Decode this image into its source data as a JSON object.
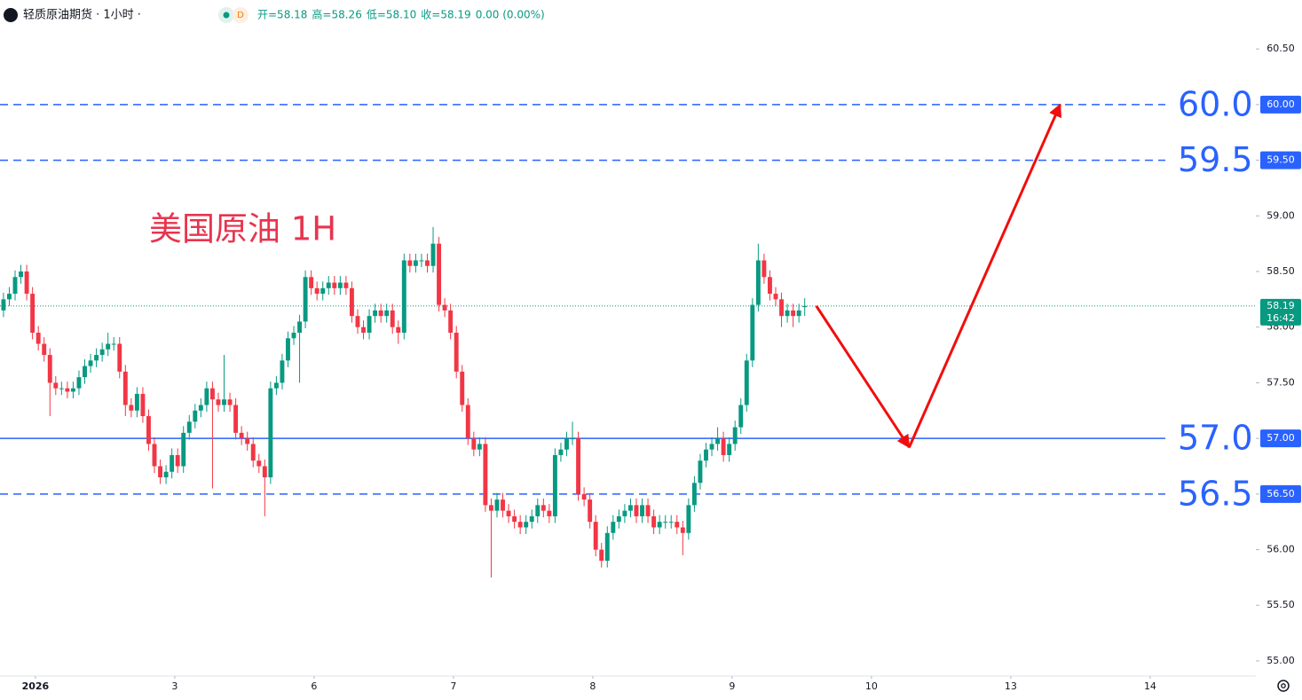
{
  "chart_data": {
    "type": "candlestick",
    "header": {
      "symbol": "轻质原油期货 · 1小时 ·",
      "badge": "D",
      "ohlc": [
        "开=58.18",
        "高=58.26",
        "低=58.10",
        "收=58.19",
        "0.00 (0.00%)"
      ]
    },
    "annotation": "美国原油 1H",
    "up_color": "#089981",
    "down_color": "#f23645",
    "open": [
      58.15,
      58.25,
      58.3,
      58.45,
      58.5,
      58.3,
      57.95,
      57.85,
      57.75,
      57.5,
      57.45,
      57.45,
      57.42,
      57.45,
      57.55,
      57.65,
      57.7,
      57.75,
      57.8,
      57.85,
      57.85,
      57.6,
      57.3,
      57.25,
      57.4,
      57.2,
      56.95,
      56.75,
      56.65,
      56.7,
      56.85,
      56.75,
      57.05,
      57.15,
      57.25,
      57.3,
      57.45,
      57.35,
      57.3,
      57.35,
      57.3,
      57.05,
      57.0,
      56.95,
      56.8,
      56.75,
      56.65,
      57.45,
      57.5,
      57.7,
      57.9,
      57.95,
      58.05,
      58.45,
      58.35,
      58.3,
      58.35,
      58.4,
      58.35,
      58.4,
      58.35,
      58.1,
      58.0,
      57.95,
      58.1,
      58.15,
      58.1,
      58.15,
      58.0,
      57.95,
      58.6,
      58.55,
      58.6,
      58.6,
      58.55,
      58.75,
      58.2,
      58.15,
      57.95,
      57.6,
      57.3,
      57.0,
      56.9,
      56.95,
      56.4,
      56.35,
      56.45,
      56.35,
      56.3,
      56.25,
      56.2,
      56.25,
      56.3,
      56.4,
      56.35,
      56.3,
      56.85,
      56.9,
      57.0,
      57.0,
      56.5,
      56.45,
      56.25,
      56.0,
      55.9,
      56.15,
      56.25,
      56.3,
      56.35,
      56.4,
      56.3,
      56.4,
      56.3,
      56.2,
      56.25,
      56.25,
      56.25,
      56.2,
      56.15,
      56.4,
      56.6,
      56.8,
      56.9,
      56.95,
      57.0,
      56.85,
      56.95,
      57.1,
      57.3,
      57.7,
      58.2,
      58.6,
      58.45,
      58.3,
      58.25,
      58.1,
      58.15,
      58.1,
      58.18
    ],
    "high": [
      58.31,
      58.36,
      58.51,
      58.56,
      58.56,
      58.36,
      58.01,
      57.91,
      57.81,
      57.56,
      57.51,
      57.51,
      57.51,
      57.61,
      57.71,
      57.76,
      57.81,
      57.86,
      57.95,
      57.91,
      57.91,
      57.66,
      57.36,
      57.46,
      57.46,
      57.26,
      57.01,
      56.81,
      56.76,
      56.91,
      56.91,
      57.11,
      57.21,
      57.31,
      57.36,
      57.51,
      57.51,
      57.41,
      57.75,
      57.41,
      57.36,
      57.11,
      57.06,
      57.01,
      56.86,
      56.81,
      57.51,
      57.56,
      57.76,
      57.96,
      58.01,
      58.11,
      58.51,
      58.51,
      58.41,
      58.41,
      58.46,
      58.46,
      58.46,
      58.46,
      58.41,
      58.16,
      58.06,
      58.16,
      58.21,
      58.21,
      58.21,
      58.21,
      58.06,
      58.66,
      58.66,
      58.66,
      58.66,
      58.66,
      58.9,
      58.81,
      58.26,
      58.21,
      58.01,
      57.66,
      57.36,
      57.06,
      57.01,
      57.01,
      56.46,
      56.51,
      56.51,
      56.41,
      56.36,
      56.31,
      56.31,
      56.36,
      56.46,
      56.46,
      56.41,
      56.91,
      56.96,
      57.06,
      57.15,
      57.06,
      56.56,
      56.51,
      56.31,
      56.06,
      56.21,
      56.31,
      56.36,
      56.41,
      56.46,
      56.46,
      56.46,
      56.46,
      56.36,
      56.31,
      56.31,
      56.31,
      56.31,
      56.26,
      56.46,
      56.66,
      56.86,
      56.96,
      57.01,
      57.1,
      57.06,
      57.01,
      57.16,
      57.36,
      57.76,
      58.26,
      58.75,
      58.66,
      58.51,
      58.36,
      58.31,
      58.21,
      58.21,
      58.21,
      58.26
    ],
    "low": [
      58.09,
      58.19,
      58.24,
      58.39,
      58.24,
      57.89,
      57.79,
      57.69,
      57.2,
      57.39,
      57.39,
      57.36,
      57.36,
      57.39,
      57.49,
      57.59,
      57.64,
      57.69,
      57.74,
      57.79,
      57.54,
      57.2,
      57.19,
      57.19,
      57.14,
      56.89,
      56.69,
      56.59,
      56.59,
      56.64,
      56.69,
      56.69,
      56.99,
      57.09,
      57.19,
      57.24,
      56.55,
      57.24,
      57.24,
      57.24,
      56.99,
      56.94,
      56.89,
      56.74,
      56.69,
      56.3,
      56.59,
      57.39,
      57.44,
      57.64,
      57.84,
      57.5,
      57.99,
      58.29,
      58.24,
      58.24,
      58.29,
      58.29,
      58.29,
      58.29,
      58.04,
      57.94,
      57.89,
      57.89,
      58.04,
      58.04,
      58.04,
      57.94,
      57.85,
      57.89,
      58.49,
      58.49,
      58.54,
      58.49,
      58.49,
      58.14,
      58.09,
      57.89,
      57.54,
      57.24,
      56.94,
      56.84,
      56.84,
      56.34,
      55.75,
      56.29,
      56.29,
      56.24,
      56.19,
      56.14,
      56.14,
      56.19,
      56.24,
      56.29,
      56.24,
      56.24,
      56.79,
      56.84,
      56.94,
      56.44,
      56.39,
      56.19,
      55.94,
      55.84,
      55.84,
      56.09,
      56.19,
      56.24,
      56.29,
      56.24,
      56.24,
      56.24,
      56.14,
      56.14,
      56.19,
      56.19,
      56.14,
      55.95,
      56.09,
      56.34,
      56.54,
      56.74,
      56.84,
      56.89,
      56.79,
      56.79,
      56.89,
      57.04,
      57.24,
      57.64,
      58.14,
      58.39,
      58.24,
      58.19,
      58.0,
      58.04,
      58.0,
      58.04,
      58.1
    ],
    "close": [
      58.25,
      58.3,
      58.45,
      58.5,
      58.3,
      57.95,
      57.85,
      57.75,
      57.5,
      57.45,
      57.45,
      57.42,
      57.45,
      57.55,
      57.65,
      57.7,
      57.75,
      57.8,
      57.85,
      57.85,
      57.6,
      57.3,
      57.25,
      57.4,
      57.2,
      56.95,
      56.75,
      56.65,
      56.7,
      56.85,
      56.75,
      57.05,
      57.15,
      57.25,
      57.3,
      57.45,
      57.35,
      57.3,
      57.35,
      57.3,
      57.05,
      57.0,
      56.95,
      56.8,
      56.75,
      56.65,
      57.45,
      57.5,
      57.7,
      57.9,
      57.95,
      58.05,
      58.45,
      58.35,
      58.3,
      58.35,
      58.4,
      58.35,
      58.4,
      58.35,
      58.1,
      58.0,
      57.95,
      58.1,
      58.15,
      58.1,
      58.15,
      58.0,
      57.95,
      58.6,
      58.55,
      58.6,
      58.6,
      58.55,
      58.75,
      58.2,
      58.15,
      57.95,
      57.6,
      57.3,
      57.0,
      56.9,
      56.95,
      56.4,
      56.35,
      56.45,
      56.35,
      56.3,
      56.25,
      56.2,
      56.25,
      56.3,
      56.4,
      56.35,
      56.3,
      56.85,
      56.9,
      57.0,
      57.0,
      56.5,
      56.45,
      56.25,
      56.0,
      55.9,
      56.15,
      56.25,
      56.3,
      56.35,
      56.4,
      56.3,
      56.4,
      56.3,
      56.2,
      56.25,
      56.25,
      56.25,
      56.2,
      56.15,
      56.4,
      56.6,
      56.8,
      56.9,
      56.95,
      57.0,
      56.85,
      56.95,
      57.1,
      57.3,
      57.7,
      58.2,
      58.6,
      58.45,
      58.3,
      58.25,
      58.1,
      58.15,
      58.1,
      58.15,
      58.19
    ],
    "xlim": [
      -0.6,
      215.7
    ],
    "xticks": [
      {
        "value": 5.5,
        "label": "2026"
      },
      {
        "value": 29.5,
        "label": "3"
      },
      {
        "value": 53.5,
        "label": "6"
      },
      {
        "value": 77.5,
        "label": "7"
      },
      {
        "value": 101.5,
        "label": "8"
      },
      {
        "value": 125.5,
        "label": "9"
      },
      {
        "value": 149.5,
        "label": "10"
      },
      {
        "value": 173.5,
        "label": "13"
      },
      {
        "value": 197.5,
        "label": "14"
      }
    ],
    "ylim": [
      54.88,
      60.94
    ],
    "yticks": [
      {
        "value": 55,
        "label": "55.00"
      },
      {
        "value": 55.5,
        "label": "55.50"
      },
      {
        "value": 56,
        "label": "56.00"
      },
      {
        "value": 56.5,
        "label": "56.50"
      },
      {
        "value": 57,
        "label": "57.00"
      },
      {
        "value": 57.5,
        "label": "57.50"
      },
      {
        "value": 58,
        "label": "58.00"
      },
      {
        "value": 58.5,
        "label": "58.50"
      },
      {
        "value": 59,
        "label": "59.00"
      },
      {
        "value": 59.5,
        "label": "59.50"
      },
      {
        "value": 60,
        "label": "60.00"
      },
      {
        "value": 60.5,
        "label": "60.50"
      }
    ],
    "levels": [
      {
        "value": 60,
        "label": "60.0",
        "tag": "60.00",
        "style": "dashed"
      },
      {
        "value": 59.5,
        "label": "59.5",
        "tag": "59.50",
        "style": "dashed"
      },
      {
        "value": 57,
        "label": "57.0",
        "tag": "57.00",
        "style": "solid"
      },
      {
        "value": 56.5,
        "label": "56.5",
        "tag": "56.50",
        "style": "dashed"
      }
    ],
    "level_color": "#2962ff",
    "last": {
      "value": 58.19,
      "time": "16:42"
    },
    "projection": {
      "color": "#f20d0d",
      "x": [
        140,
        156,
        182
      ],
      "values": [
        58.19,
        56.92,
        60.0
      ]
    }
  }
}
